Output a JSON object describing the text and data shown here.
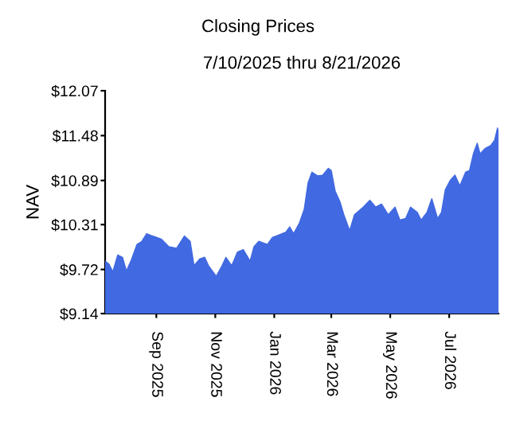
{
  "chart_data": {
    "type": "area",
    "title": "Closing Prices",
    "subtitle": "7/10/2025 thru 8/21/2026",
    "ylabel": "NAV",
    "x": [
      "2025-07-10",
      "2025-07-14",
      "2025-07-18",
      "2025-07-23",
      "2025-07-28",
      "2025-08-01",
      "2025-08-06",
      "2025-08-12",
      "2025-08-17",
      "2025-08-22",
      "2025-08-28",
      "2025-09-06",
      "2025-09-14",
      "2025-09-22",
      "2025-09-30",
      "2025-10-06",
      "2025-10-10",
      "2025-10-16",
      "2025-10-21",
      "2025-10-25",
      "2025-11-02",
      "2025-11-08",
      "2025-11-12",
      "2025-11-18",
      "2025-11-24",
      "2025-11-30",
      "2025-12-07",
      "2025-12-11",
      "2025-12-16",
      "2025-12-25",
      "2025-12-30",
      "2026-01-07",
      "2026-01-13",
      "2026-01-17",
      "2026-01-21",
      "2026-01-27",
      "2026-02-01",
      "2026-02-05",
      "2026-02-09",
      "2026-02-15",
      "2026-02-20",
      "2026-02-26",
      "2026-03-01",
      "2026-03-05",
      "2026-03-10",
      "2026-03-14",
      "2026-03-20",
      "2026-03-25",
      "2026-04-03",
      "2026-04-10",
      "2026-04-16",
      "2026-04-22",
      "2026-04-29",
      "2026-05-06",
      "2026-05-11",
      "2026-05-17",
      "2026-05-22",
      "2026-05-29",
      "2026-06-02",
      "2026-06-08",
      "2026-06-13",
      "2026-06-19",
      "2026-06-23",
      "2026-06-27",
      "2026-07-02",
      "2026-07-07",
      "2026-07-12",
      "2026-07-18",
      "2026-07-22",
      "2026-07-26",
      "2026-07-30",
      "2026-08-02",
      "2026-08-07",
      "2026-08-13",
      "2026-08-17",
      "2026-08-20",
      "2026-08-21"
    ],
    "series": [
      {
        "color": "#4169e1",
        "values": [
          9.83,
          9.79,
          9.69,
          9.91,
          9.88,
          9.7,
          9.84,
          10.05,
          10.09,
          10.19,
          10.16,
          10.12,
          10.02,
          10.0,
          10.16,
          10.09,
          9.77,
          9.86,
          9.88,
          9.77,
          9.63,
          9.77,
          9.88,
          9.77,
          9.95,
          9.98,
          9.83,
          10.02,
          10.09,
          10.05,
          10.14,
          10.18,
          10.21,
          10.28,
          10.19,
          10.33,
          10.51,
          10.86,
          11.0,
          10.95,
          10.96,
          11.05,
          11.02,
          10.75,
          10.61,
          10.44,
          10.23,
          10.44,
          10.54,
          10.63,
          10.54,
          10.58,
          10.44,
          10.54,
          10.37,
          10.39,
          10.54,
          10.47,
          10.37,
          10.47,
          10.65,
          10.39,
          10.47,
          10.77,
          10.89,
          10.96,
          10.82,
          11.0,
          11.02,
          11.24,
          11.38,
          11.24,
          11.31,
          11.35,
          11.42,
          11.58,
          11.52
        ]
      }
    ],
    "xlim": [
      "2025-07-10",
      "2026-08-21"
    ],
    "xticks": [
      {
        "value": "2025-09-01",
        "label": "Sep 2025"
      },
      {
        "value": "2025-11-01",
        "label": "Nov 2025"
      },
      {
        "value": "2026-01-01",
        "label": "Jan 2026"
      },
      {
        "value": "2026-03-01",
        "label": "Mar 2026"
      },
      {
        "value": "2026-05-01",
        "label": "May 2026"
      },
      {
        "value": "2026-07-01",
        "label": "Jul 2026"
      }
    ],
    "ylim": [
      9.14,
      12.07
    ],
    "yticks": [
      {
        "value": 9.14,
        "label": "$9.14"
      },
      {
        "value": 9.72,
        "label": "$9.72"
      },
      {
        "value": 10.31,
        "label": "$10.31"
      },
      {
        "value": 10.89,
        "label": "$10.89"
      },
      {
        "value": 11.48,
        "label": "$11.48"
      },
      {
        "value": 12.07,
        "label": "$12.07"
      }
    ]
  }
}
